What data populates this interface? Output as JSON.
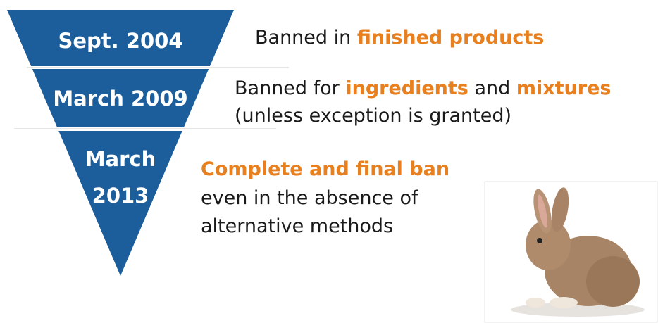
{
  "highlight_color": "#e8801f",
  "text_color": "#1a1a1a",
  "funnel_color": "#1b5e9b",
  "stages": [
    {
      "label": [
        "Sept. 2004"
      ],
      "description": [
        [
          {
            "text": "Banned in ",
            "highlight": false
          },
          {
            "text": "finished products",
            "highlight": true
          }
        ]
      ]
    },
    {
      "label": [
        "March 2009"
      ],
      "description": [
        [
          {
            "text": "Banned for ",
            "highlight": false
          },
          {
            "text": "ingredients",
            "highlight": true
          },
          {
            "text": " and ",
            "highlight": false
          },
          {
            "text": "mixtures",
            "highlight": true
          }
        ],
        [
          {
            "text": "(unless exception is granted)",
            "highlight": false
          }
        ]
      ]
    },
    {
      "label": [
        "March",
        "2013"
      ],
      "description": [
        [
          {
            "text": "Complete and final ban",
            "highlight": true
          }
        ],
        [
          {
            "text": "even in the absence of",
            "highlight": false
          }
        ],
        [
          {
            "text": "alternative methods",
            "highlight": false
          }
        ]
      ]
    }
  ]
}
